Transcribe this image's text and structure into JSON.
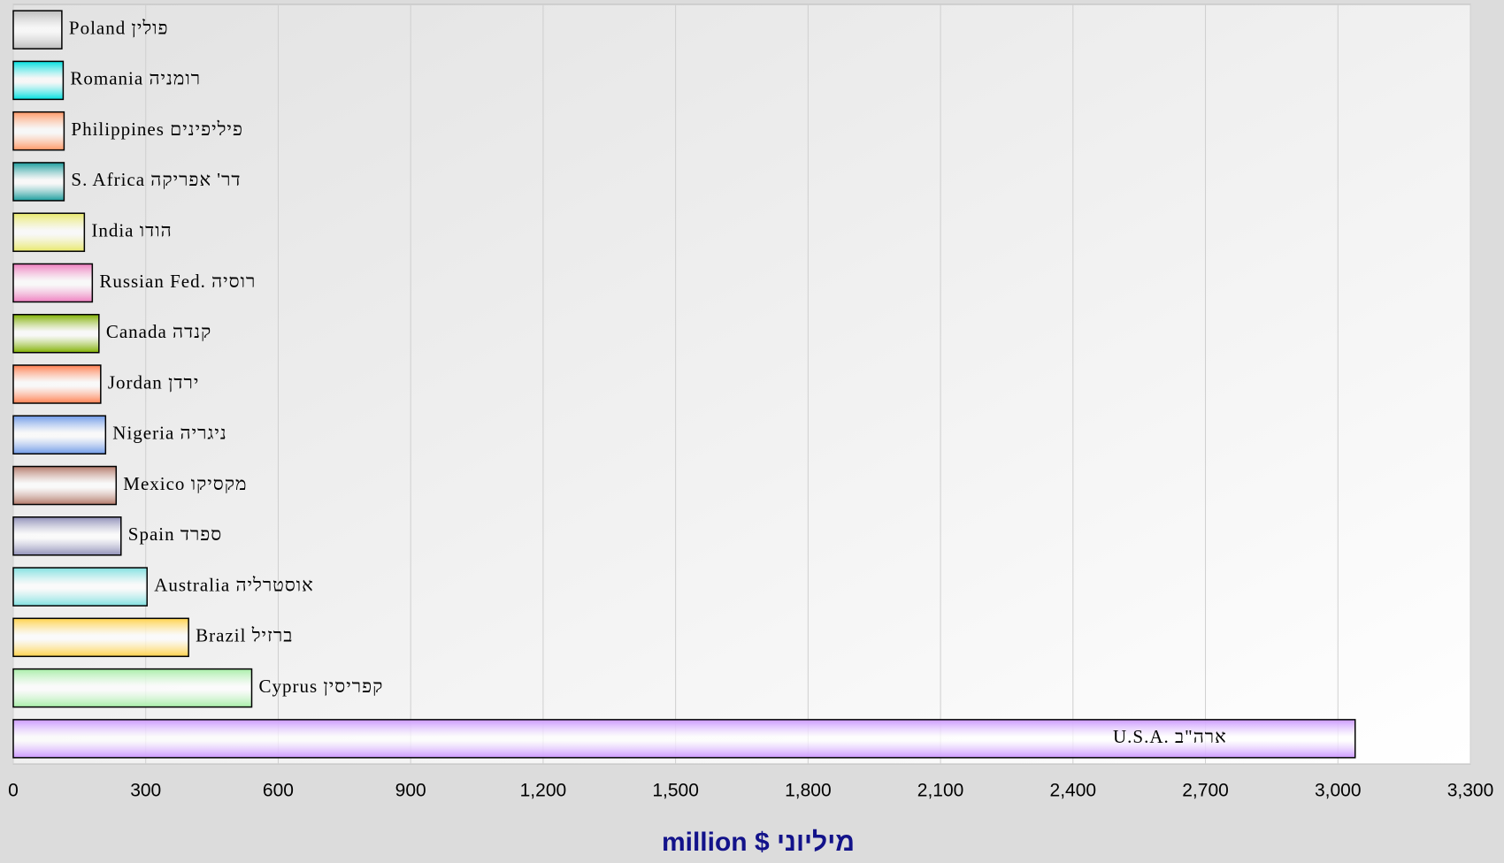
{
  "chart_data": {
    "type": "bar",
    "orientation": "horizontal",
    "x_label": "million $ מיליוני",
    "categories": [
      "Poland  פולין",
      "Romania  רומניה",
      "Philippines  פיליפינים",
      "S. Africa  דר' אפריקה",
      "India הודו",
      "Russian Fed.  רוסיה",
      "Canada  קנדה",
      "Jordan ירדן",
      "Nigeria  ניגריה",
      "Mexico  מקסיקו",
      "Spain  ספרד",
      "Australia  אוסטרליה",
      "Brazil  ברזיל",
      "Cyprus  קפריסין",
      "U.S.A.  ארה\"ב"
    ],
    "values": [
      110,
      113,
      115,
      115,
      161,
      179,
      194,
      198,
      209,
      233,
      244,
      303,
      397,
      540,
      3039
    ],
    "colors": [
      "#bdbdbd",
      "#00e0e0",
      "#ff9966",
      "#1a9c9c",
      "#e8e86a",
      "#ee7fbf",
      "#80b000",
      "#ff7f50",
      "#6f9ae8",
      "#b47a6a",
      "#9090b8",
      "#80e0e0",
      "#ffd24a",
      "#a8eea8",
      "#cc99ff"
    ],
    "xlim": [
      0,
      3300
    ],
    "xticks": [
      0,
      300,
      600,
      900,
      {
        "value": 1200,
        "label": "1,200"
      },
      {
        "value": 1500,
        "label": "1,500"
      },
      {
        "value": 1800,
        "label": "1,800"
      },
      {
        "value": 2100,
        "label": "2,100"
      },
      {
        "value": 2400,
        "label": "2,400"
      },
      {
        "value": 2700,
        "label": "2,700"
      },
      {
        "value": 3000,
        "label": "3,000"
      },
      {
        "value": 3300,
        "label": "3,300"
      }
    ],
    "grid": true
  }
}
